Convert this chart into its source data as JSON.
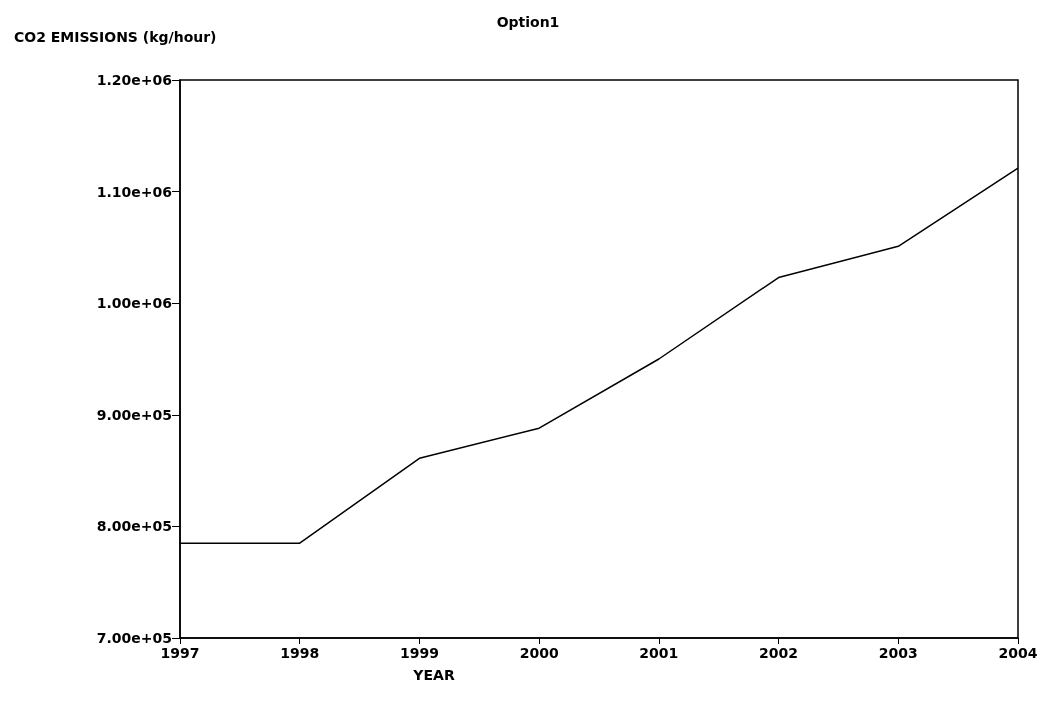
{
  "chart_data": {
    "type": "line",
    "title": "Option1",
    "ylabel": "CO2 EMISSIONS (kg/hour)",
    "xlabel": "YEAR",
    "x": [
      1997,
      1998,
      1999,
      2000,
      2001,
      2002,
      2003,
      2004
    ],
    "series": [
      {
        "color": "#000000",
        "values": [
          785000,
          785000,
          861000,
          888000,
          950000,
          1023000,
          1051000,
          1121000
        ]
      }
    ],
    "xlim": [
      1997,
      2004
    ],
    "xticks": [
      1997,
      1998,
      1999,
      2000,
      2001,
      2002,
      2003,
      2004
    ],
    "ylim": [
      700000,
      1200000
    ],
    "yticks": [
      {
        "value": 700000,
        "label": "7.00e+05"
      },
      {
        "value": 800000,
        "label": "8.00e+05"
      },
      {
        "value": 900000,
        "label": "9.00e+05"
      },
      {
        "value": 1000000,
        "label": "1.00e+06"
      },
      {
        "value": 1100000,
        "label": "1.10e+06"
      },
      {
        "value": 1200000,
        "label": "1.20e+06"
      }
    ],
    "grid": false,
    "marker": "none",
    "line_style": "solid"
  }
}
